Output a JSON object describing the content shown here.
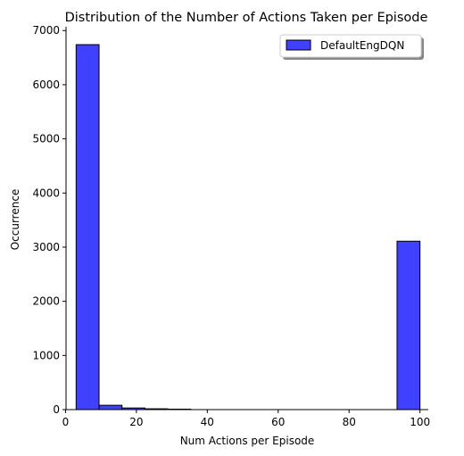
{
  "chart_data": {
    "type": "bar",
    "title": "Distribution of the Number of Actions Taken per Episode",
    "xlabel": "Num Actions per Episode",
    "ylabel": "Occurrence",
    "xlim": [
      0.15,
      102.35
    ],
    "ylim": [
      0,
      7070
    ],
    "xticks": [
      0,
      20,
      40,
      60,
      80,
      100
    ],
    "yticks": [
      0,
      1000,
      2000,
      3000,
      4000,
      5000,
      6000,
      7000
    ],
    "grid": false,
    "legend": {
      "position": "top-right"
    },
    "series": [
      {
        "name": "DefaultEngDQN",
        "color": "#0000ff",
        "bins": [
          {
            "x0": 3,
            "x1": 9.47,
            "value": 6740
          },
          {
            "x0": 9.47,
            "x1": 15.93,
            "value": 80
          },
          {
            "x0": 15.93,
            "x1": 22.4,
            "value": 30
          },
          {
            "x0": 22.4,
            "x1": 28.87,
            "value": 15
          },
          {
            "x0": 28.87,
            "x1": 35.33,
            "value": 8
          },
          {
            "x0": 35.33,
            "x1": 41.8,
            "value": 0
          },
          {
            "x0": 41.8,
            "x1": 48.27,
            "value": 0
          },
          {
            "x0": 48.27,
            "x1": 54.73,
            "value": 0
          },
          {
            "x0": 54.73,
            "x1": 61.2,
            "value": 0
          },
          {
            "x0": 61.2,
            "x1": 67.67,
            "value": 0
          },
          {
            "x0": 67.67,
            "x1": 74.13,
            "value": 0
          },
          {
            "x0": 74.13,
            "x1": 80.6,
            "value": 0
          },
          {
            "x0": 80.6,
            "x1": 87.07,
            "value": 0
          },
          {
            "x0": 87.07,
            "x1": 93.53,
            "value": 0
          },
          {
            "x0": 93.53,
            "x1": 100,
            "value": 3110
          }
        ]
      }
    ]
  }
}
